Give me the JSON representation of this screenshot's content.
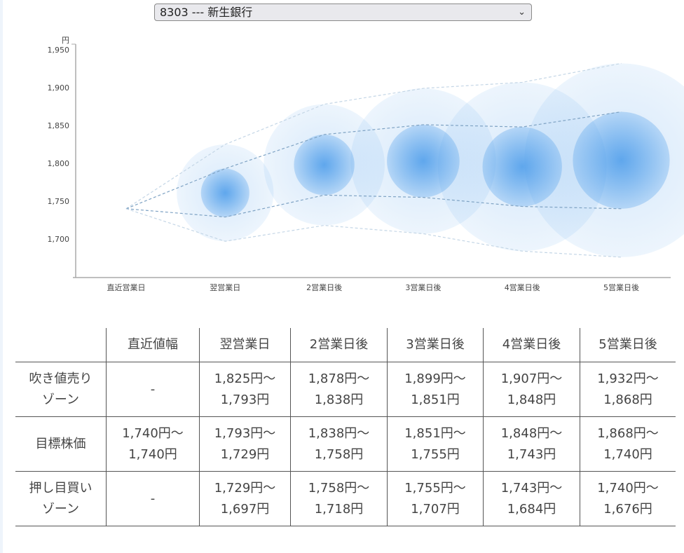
{
  "selector": {
    "value": "8303 --- 新生銀行"
  },
  "chart_data": {
    "type": "bubble-range",
    "yunit": "円",
    "ylim": [
      1650,
      1950
    ],
    "yticks": [
      "1,950",
      "1,900",
      "1,850",
      "1,800",
      "1,750",
      "1,700"
    ],
    "ytick_values": [
      1950,
      1900,
      1850,
      1800,
      1750,
      1700
    ],
    "categories": [
      "直近営業日",
      "翌営業日",
      "2営業日後",
      "3営業日後",
      "4営業日後",
      "5営業日後"
    ],
    "sell_upper": [
      1740,
      1825,
      1878,
      1899,
      1907,
      1932
    ],
    "target_upper": [
      1740,
      1793,
      1838,
      1851,
      1848,
      1868
    ],
    "target_lower": [
      1740,
      1729,
      1758,
      1755,
      1743,
      1740
    ],
    "buy_lower": [
      1740,
      1697,
      1718,
      1707,
      1684,
      1676
    ]
  },
  "table": {
    "headers": [
      "",
      "直近値幅",
      "翌営業日",
      "2営業日後",
      "3営業日後",
      "4営業日後",
      "5営業日後"
    ],
    "rows": [
      {
        "label": [
          "吹き値売り",
          "ゾーン"
        ],
        "cells": [
          [
            "-"
          ],
          [
            "1,825円～",
            "1,793円"
          ],
          [
            "1,878円～",
            "1,838円"
          ],
          [
            "1,899円～",
            "1,851円"
          ],
          [
            "1,907円～",
            "1,848円"
          ],
          [
            "1,932円～",
            "1,868円"
          ]
        ]
      },
      {
        "label": [
          "目標株価"
        ],
        "cells": [
          [
            "1,740円～",
            "1,740円"
          ],
          [
            "1,793円～",
            "1,729円"
          ],
          [
            "1,838円～",
            "1,758円"
          ],
          [
            "1,851円～",
            "1,755円"
          ],
          [
            "1,848円～",
            "1,743円"
          ],
          [
            "1,868円～",
            "1,740円"
          ]
        ]
      },
      {
        "label": [
          "押し目買い",
          "ゾーン"
        ],
        "cells": [
          [
            "-"
          ],
          [
            "1,729円～",
            "1,697円"
          ],
          [
            "1,758円～",
            "1,718円"
          ],
          [
            "1,755円～",
            "1,707円"
          ],
          [
            "1,743円～",
            "1,684円"
          ],
          [
            "1,740円～",
            "1,676円"
          ]
        ]
      }
    ]
  },
  "colors": {
    "bubble": "#4a9bea",
    "line": "#7fa3c4"
  }
}
